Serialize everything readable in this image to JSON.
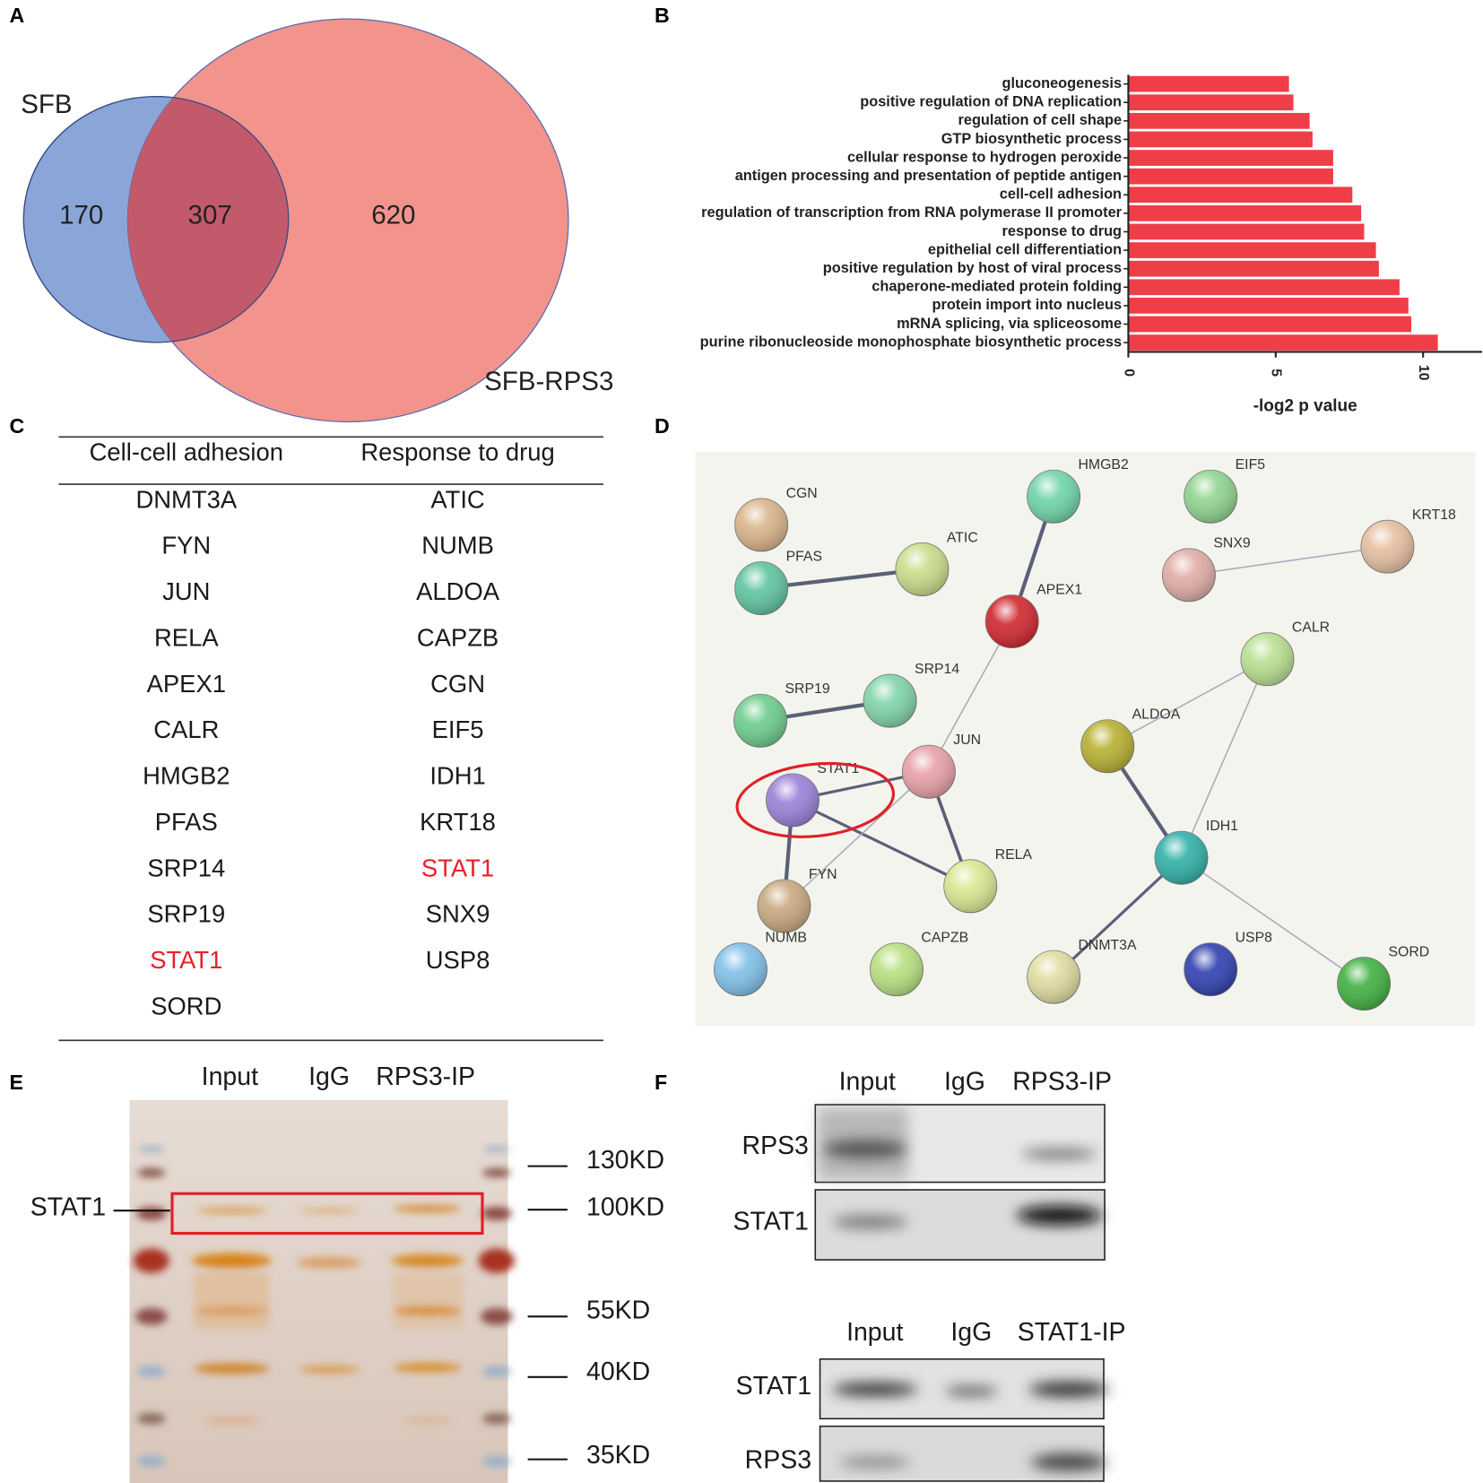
{
  "panel_labels": [
    "A",
    "B",
    "C",
    "D",
    "E",
    "F"
  ],
  "venn": {
    "sets": [
      "SFB",
      "SFB-RPS3"
    ],
    "counts": [
      170,
      307,
      620
    ],
    "colors": [
      "#8aa6d8",
      "#f08078"
    ]
  },
  "chart_data": {
    "type": "bar",
    "orientation": "horizontal",
    "categories": [
      "gluconeogenesis",
      "positive regulation of DNA replication",
      "regulation of cell shape",
      "GTP biosynthetic process",
      "cellular response to hydrogen peroxide",
      "antigen processing and presentation of peptide antigen",
      "cell-cell adhesion",
      "regulation of transcription from RNA polymerase II promoter",
      "response to drug",
      "epithelial cell differentiation",
      "positive regulation by host of viral process",
      "chaperone-mediated protein folding",
      "protein import into nucleus",
      "mRNA splicing, via spliceosome",
      "purine ribonucleoside monophosphate biosynthetic process"
    ],
    "values": [
      5.45,
      5.6,
      6.15,
      6.25,
      6.95,
      6.95,
      7.6,
      7.9,
      8.0,
      8.4,
      8.5,
      9.2,
      9.5,
      9.6,
      10.5
    ],
    "color": "#ef3e48",
    "xlabel": "-log2 p value",
    "xlim": [
      0,
      12
    ],
    "xticks": [
      0,
      5,
      10
    ]
  },
  "table": {
    "headers": [
      "Cell-cell adhesion",
      "Response to drug"
    ],
    "columns": [
      [
        "DNMT3A",
        "FYN",
        "JUN",
        "RELA",
        "APEX1",
        "CALR",
        "HMGB2",
        "PFAS",
        "SRP14",
        "SRP19",
        "STAT1",
        "SORD"
      ],
      [
        "ATIC",
        "NUMB",
        "ALDOA",
        "CAPZB",
        "CGN",
        "EIF5",
        "IDH1",
        "KRT18",
        "STAT1",
        "SNX9",
        "USP8"
      ]
    ],
    "highlight": "STAT1",
    "highlight_color": "#e8202a"
  },
  "network": {
    "nodes": [
      {
        "label": "CGN",
        "color": "#d9b48a"
      },
      {
        "label": "PFAS",
        "color": "#5fc4a0"
      },
      {
        "label": "ATIC",
        "color": "#c8dd8a"
      },
      {
        "label": "HMGB2",
        "color": "#6fd4a8"
      },
      {
        "label": "EIF5",
        "color": "#90d490"
      },
      {
        "label": "KRT18",
        "color": "#e6bfa0"
      },
      {
        "label": "SNX9",
        "color": "#e0aca6"
      },
      {
        "label": "APEX1",
        "color": "#d0262e"
      },
      {
        "label": "CALR",
        "color": "#b8e090"
      },
      {
        "label": "SRP19",
        "color": "#6ccc8c"
      },
      {
        "label": "SRP14",
        "color": "#7fd4a8"
      },
      {
        "label": "ALDOA",
        "color": "#b8b030"
      },
      {
        "label": "JUN",
        "color": "#e8a0a8"
      },
      {
        "label": "STAT1",
        "color": "#9a80d8"
      },
      {
        "label": "IDH1",
        "color": "#30b0a8"
      },
      {
        "label": "RELA",
        "color": "#d8e890"
      },
      {
        "label": "FYN",
        "color": "#c8a880"
      },
      {
        "label": "NUMB",
        "color": "#80c0e8"
      },
      {
        "label": "CAPZB",
        "color": "#b8e080"
      },
      {
        "label": "DNMT3A",
        "color": "#e0dca0"
      },
      {
        "label": "USP8",
        "color": "#3040b0"
      },
      {
        "label": "SORD",
        "color": "#40b040"
      }
    ]
  },
  "gel": {
    "lanes": [
      "Input",
      "IgG",
      "RPS3-IP"
    ],
    "band_label": "STAT1",
    "markers": [
      "130KD",
      "100KD",
      "55KD",
      "40KD",
      "35KD"
    ]
  },
  "blots": [
    {
      "lanes": [
        "Input",
        "IgG",
        "RPS3-IP"
      ],
      "rows": [
        "RPS3",
        "STAT1"
      ]
    },
    {
      "lanes": [
        "Input",
        "IgG",
        "STAT1-IP"
      ],
      "rows": [
        "STAT1",
        "RPS3"
      ]
    }
  ]
}
